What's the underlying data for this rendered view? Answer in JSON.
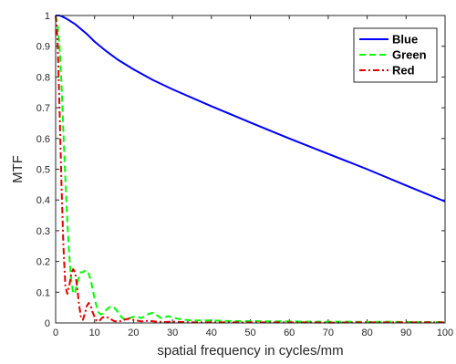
{
  "chart_data": {
    "type": "line",
    "title": "",
    "xlabel": "spatial frequency in cycles/mm",
    "ylabel": "MTF",
    "xlim": [
      0,
      100
    ],
    "ylim": [
      0,
      1
    ],
    "xticks": [
      0,
      10,
      20,
      30,
      40,
      50,
      60,
      70,
      80,
      90,
      100
    ],
    "yticks": [
      0,
      0.1,
      0.2,
      0.3,
      0.4,
      0.5,
      0.6,
      0.7,
      0.8,
      0.9,
      1
    ],
    "grid": false,
    "legend_position": "top-right",
    "series": [
      {
        "name": "Blue",
        "color": "#0000ff",
        "line_style": "solid",
        "x": [
          0,
          1,
          2,
          3,
          5,
          8,
          10,
          13,
          16,
          20,
          25,
          30,
          40,
          50,
          60,
          70,
          80,
          90,
          100
        ],
        "y": [
          1.0,
          1.0,
          0.995,
          0.988,
          0.972,
          0.94,
          0.915,
          0.884,
          0.856,
          0.825,
          0.79,
          0.76,
          0.705,
          0.652,
          0.6,
          0.55,
          0.5,
          0.447,
          0.395
        ]
      },
      {
        "name": "Green",
        "color": "#00ff00",
        "line_style": "dashed",
        "x": [
          0,
          0.5,
          1,
          1.5,
          2,
          2.5,
          3,
          3.5,
          4,
          4.5,
          5,
          5.5,
          6,
          6.5,
          7,
          7.5,
          8,
          8.5,
          9,
          9.5,
          10,
          10.5,
          11,
          11.5,
          12,
          12.5,
          13,
          13.5,
          14,
          14.5,
          15,
          15.5,
          16,
          16.5,
          17,
          17.5,
          18,
          19,
          20,
          21,
          22,
          23,
          24,
          25,
          26,
          27,
          28,
          29,
          30,
          32,
          35,
          40,
          45,
          50,
          55,
          60,
          65,
          70,
          75,
          80,
          85,
          90,
          95,
          100
        ],
        "y": [
          1.0,
          0.97,
          0.9,
          0.78,
          0.62,
          0.47,
          0.33,
          0.22,
          0.14,
          0.095,
          0.1,
          0.125,
          0.15,
          0.165,
          0.165,
          0.17,
          0.17,
          0.16,
          0.14,
          0.11,
          0.08,
          0.055,
          0.035,
          0.028,
          0.03,
          0.037,
          0.042,
          0.048,
          0.052,
          0.053,
          0.05,
          0.043,
          0.035,
          0.025,
          0.018,
          0.013,
          0.012,
          0.016,
          0.02,
          0.02,
          0.016,
          0.022,
          0.03,
          0.033,
          0.025,
          0.016,
          0.018,
          0.022,
          0.018,
          0.012,
          0.008,
          0.008,
          0.006,
          0.006,
          0.005,
          0.005,
          0.004,
          0.004,
          0.004,
          0.003,
          0.004,
          0.003,
          0.003,
          0.003
        ]
      },
      {
        "name": "Red",
        "color": "#e00000",
        "line_style": "dashdot",
        "x": [
          0,
          0.5,
          1,
          1.5,
          2,
          2.5,
          3,
          3.5,
          4,
          4.5,
          5,
          5.5,
          6,
          6.5,
          7,
          7.5,
          8,
          8.5,
          9,
          9.5,
          10,
          10.5,
          11,
          11.5,
          12,
          13,
          14,
          15,
          16,
          17,
          18,
          19,
          20,
          22,
          24,
          26,
          28,
          30,
          35,
          40,
          50,
          60,
          70,
          80,
          90,
          100
        ],
        "y": [
          1.0,
          0.92,
          0.7,
          0.45,
          0.25,
          0.12,
          0.095,
          0.12,
          0.16,
          0.175,
          0.165,
          0.12,
          0.06,
          0.02,
          0.01,
          0.03,
          0.055,
          0.065,
          0.055,
          0.035,
          0.02,
          0.008,
          0.005,
          0.01,
          0.018,
          0.02,
          0.014,
          0.006,
          0.004,
          0.007,
          0.012,
          0.014,
          0.01,
          0.005,
          0.007,
          0.004,
          0.003,
          0.004,
          0.002,
          0.002,
          0.002,
          0.002,
          0.001,
          0.002,
          0.002,
          0.002
        ]
      }
    ]
  }
}
